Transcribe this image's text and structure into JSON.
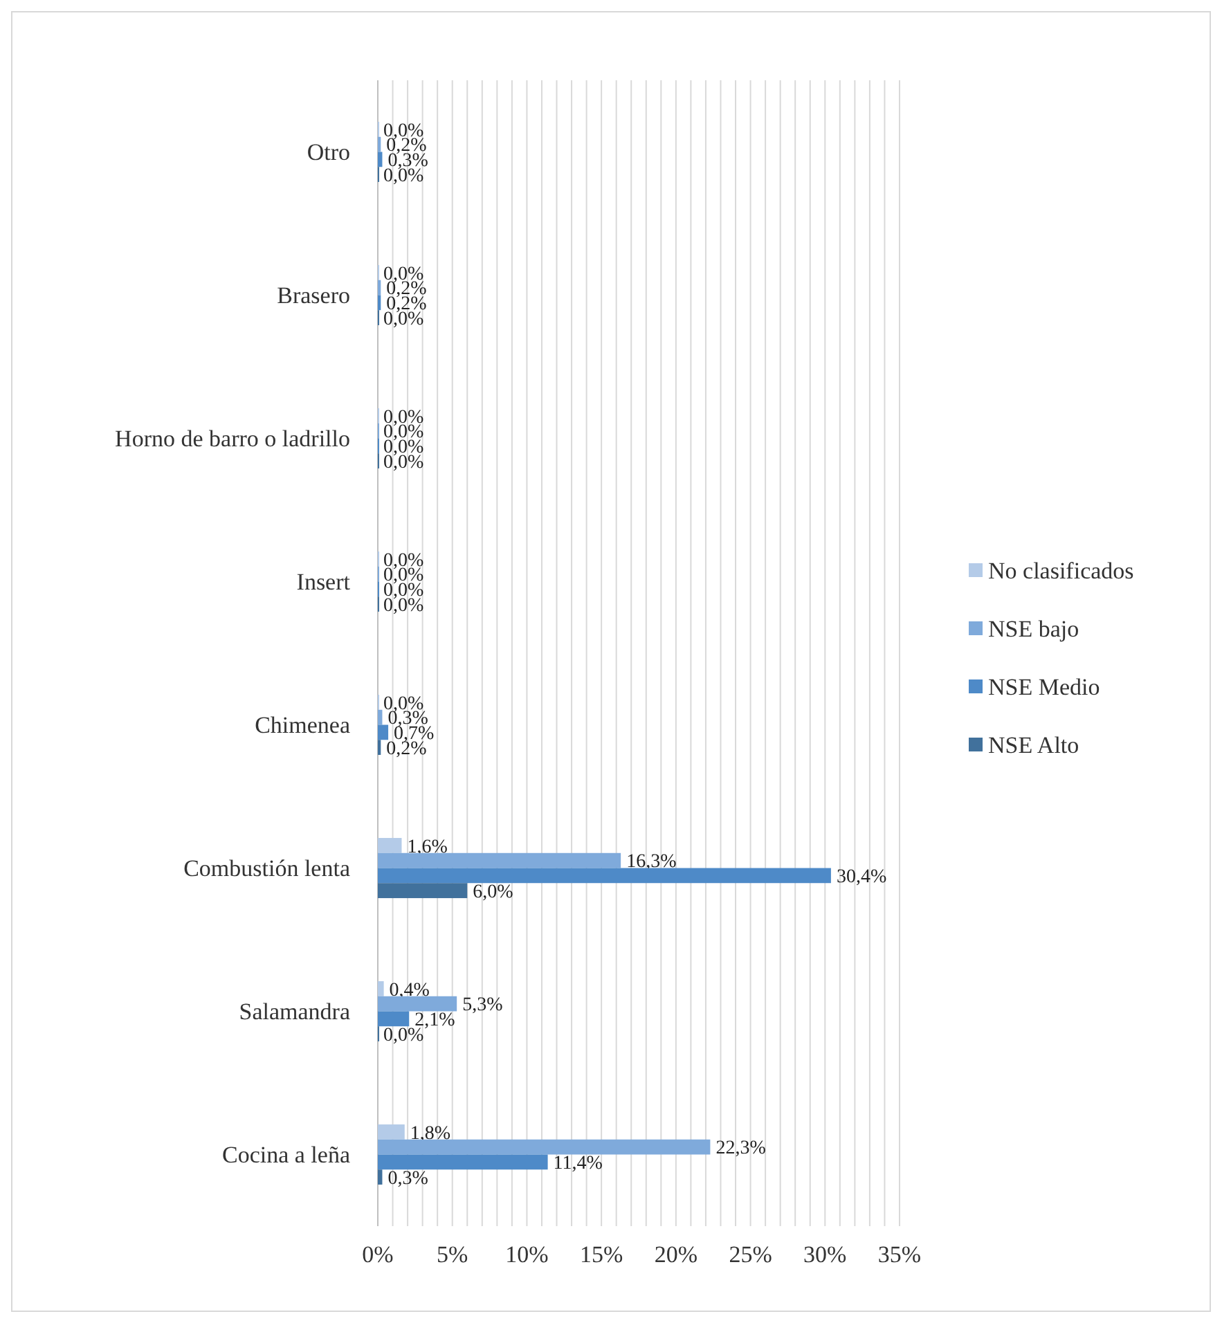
{
  "chart_data": {
    "type": "bar",
    "orientation": "horizontal",
    "categories": [
      "Otro",
      "Brasero",
      "Horno de barro o ladrillo",
      "Insert",
      "Chimenea",
      "Combustión lenta",
      "Salamandra",
      "Cocina a leña"
    ],
    "series": [
      {
        "name": "No clasificados",
        "color": "#b4cbe8",
        "values": [
          0.0,
          0.0,
          0.0,
          0.0,
          0.0,
          1.6,
          0.4,
          1.8
        ],
        "value_labels": [
          "0,0%",
          "0,0%",
          "0,0%",
          "0,0%",
          "0,0%",
          "1,6%",
          "0,4%",
          "1,8%"
        ]
      },
      {
        "name": "NSE bajo",
        "color": "#7faadb",
        "values": [
          0.2,
          0.2,
          0.0,
          0.0,
          0.3,
          16.3,
          5.3,
          22.3
        ],
        "value_labels": [
          "0,2%",
          "0,2%",
          "0,0%",
          "0,0%",
          "0,3%",
          "16,3%",
          "5,3%",
          "22,3%"
        ]
      },
      {
        "name": "NSE Medio",
        "color": "#4e8ac8",
        "values": [
          0.3,
          0.2,
          0.0,
          0.0,
          0.7,
          30.4,
          2.1,
          11.4
        ],
        "value_labels": [
          "0,3%",
          "0,2%",
          "0,0%",
          "0,0%",
          "0,7%",
          "30,4%",
          "2,1%",
          "11,4%"
        ]
      },
      {
        "name": "NSE Alto",
        "color": "#41719c",
        "values": [
          0.0,
          0.0,
          0.0,
          0.0,
          0.2,
          6.0,
          0.0,
          0.3
        ],
        "value_labels": [
          "0,0%",
          "0,0%",
          "0,0%",
          "0,0%",
          "0,2%",
          "6,0%",
          "0,0%",
          "0,3%"
        ]
      }
    ],
    "xlim": [
      0,
      35
    ],
    "xticks": [
      {
        "value": 0,
        "label": "0%"
      },
      {
        "value": 1,
        "label": null
      },
      {
        "value": 2,
        "label": null
      },
      {
        "value": 3,
        "label": null
      },
      {
        "value": 4,
        "label": null
      },
      {
        "value": 5,
        "label": "5%"
      },
      {
        "value": 6,
        "label": null
      },
      {
        "value": 7,
        "label": null
      },
      {
        "value": 8,
        "label": null
      },
      {
        "value": 9,
        "label": null
      },
      {
        "value": 10,
        "label": "10%"
      },
      {
        "value": 11,
        "label": null
      },
      {
        "value": 12,
        "label": null
      },
      {
        "value": 13,
        "label": null
      },
      {
        "value": 14,
        "label": null
      },
      {
        "value": 15,
        "label": "15%"
      },
      {
        "value": 16,
        "label": null
      },
      {
        "value": 17,
        "label": null
      },
      {
        "value": 18,
        "label": null
      },
      {
        "value": 19,
        "label": null
      },
      {
        "value": 20,
        "label": "20%"
      },
      {
        "value": 21,
        "label": null
      },
      {
        "value": 22,
        "label": null
      },
      {
        "value": 23,
        "label": null
      },
      {
        "value": 24,
        "label": null
      },
      {
        "value": 25,
        "label": "25%"
      },
      {
        "value": 26,
        "label": null
      },
      {
        "value": 27,
        "label": null
      },
      {
        "value": 28,
        "label": null
      },
      {
        "value": 29,
        "label": null
      },
      {
        "value": 30,
        "label": "30%"
      },
      {
        "value": 31,
        "label": null
      },
      {
        "value": 32,
        "label": null
      },
      {
        "value": 33,
        "label": null
      },
      {
        "value": 34,
        "label": null
      },
      {
        "value": 35,
        "label": "35%"
      }
    ],
    "grid": "x",
    "legend": "right"
  }
}
